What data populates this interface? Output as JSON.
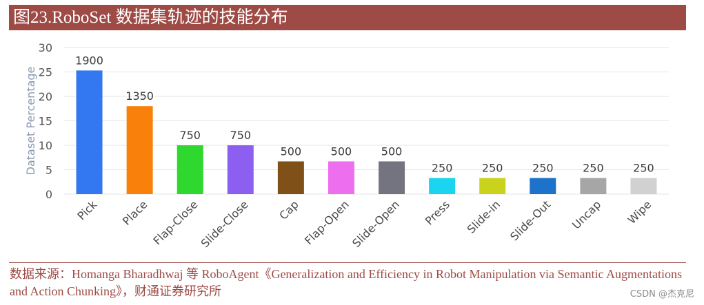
{
  "header": {
    "title": "图23.RoboSet 数据集轨迹的技能分布"
  },
  "footer": {
    "source": "数据来源：Homanga Bharadhwaj 等 RoboAgent《Generalization and Efficiency in Robot Manipulation via Semantic Augmentations and Action Chunking》，财通证券研究所",
    "watermark": "CSDN @杰克尼"
  },
  "chart_data": {
    "type": "bar",
    "title": "",
    "xlabel": "",
    "ylabel": "Dataset Percentage",
    "ylim": [
      0,
      30
    ],
    "yticks": [
      0,
      5,
      10,
      15,
      20,
      25,
      30
    ],
    "grid": true,
    "categories": [
      "Pick",
      "Place",
      "Flap-Close",
      "Slide-Close",
      "Cap",
      "Flap-Open",
      "Slide-Open",
      "Press",
      "Slide-in",
      "Slide-Out",
      "Uncap",
      "Wipe"
    ],
    "values": [
      25.3,
      18.0,
      10.0,
      10.0,
      6.7,
      6.7,
      6.7,
      3.3,
      3.3,
      3.3,
      3.3,
      3.3
    ],
    "labels": [
      "1900",
      "1350",
      "750",
      "750",
      "500",
      "500",
      "500",
      "250",
      "250",
      "250",
      "250",
      "250"
    ],
    "colors": [
      "#3378f0",
      "#f8800b",
      "#2ed82e",
      "#8c5ff0",
      "#7f5118",
      "#ee6ef0",
      "#73747f",
      "#1bd5f0",
      "#c9d31b",
      "#1d72c9",
      "#a6a6a6",
      "#d1d1d1"
    ]
  }
}
